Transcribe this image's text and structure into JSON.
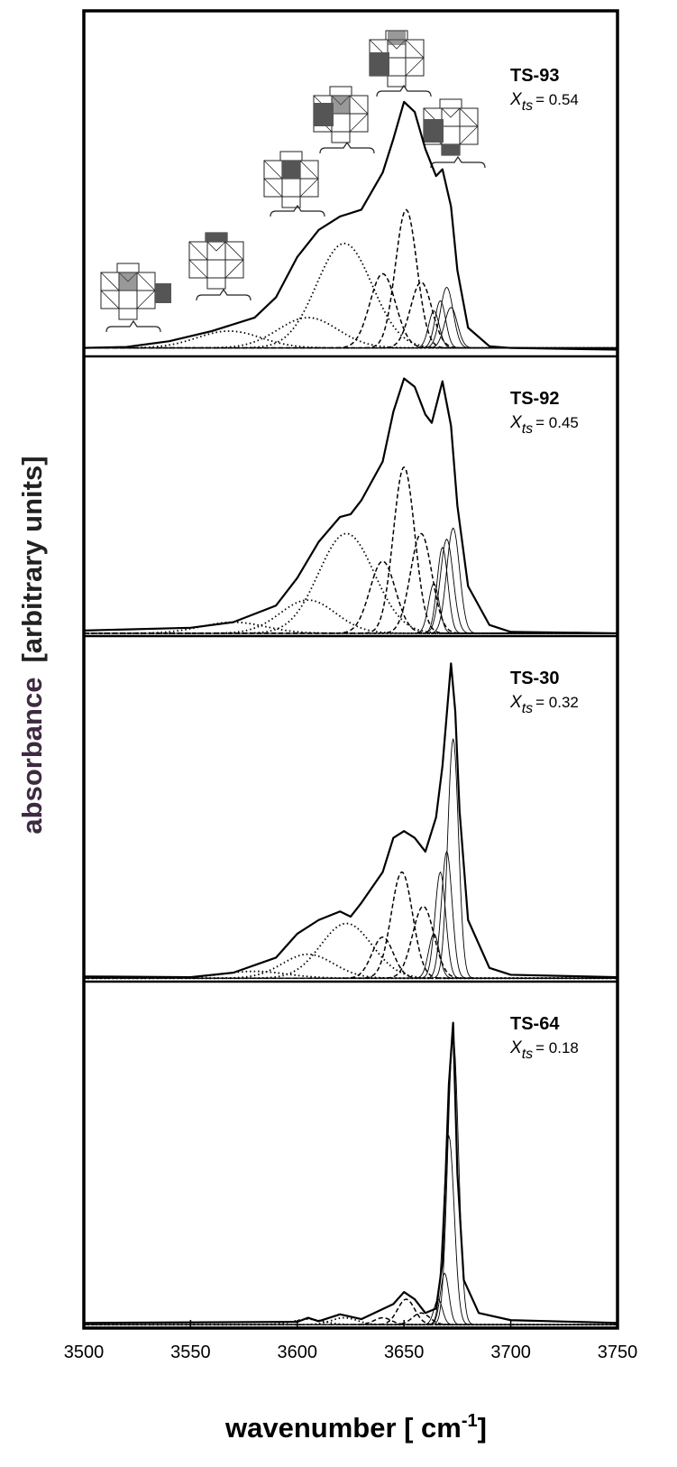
{
  "chart_data": [
    {
      "type": "line",
      "title": "TS-93",
      "annotation": {
        "symbol": "X",
        "subscript": "ts",
        "text": "= 0.54"
      },
      "xlim": [
        3500,
        3750
      ],
      "ylim": [
        -0.025,
        1
      ],
      "x": [
        3500,
        3520,
        3540,
        3560,
        3580,
        3590,
        3600,
        3610,
        3620,
        3630,
        3640,
        3645,
        3650,
        3655,
        3660,
        3665,
        3668,
        3672,
        3675,
        3680,
        3690,
        3700,
        3750
      ],
      "values": [
        0.0,
        0.003,
        0.02,
        0.05,
        0.09,
        0.15,
        0.27,
        0.35,
        0.39,
        0.41,
        0.52,
        0.62,
        0.73,
        0.7,
        0.59,
        0.51,
        0.53,
        0.42,
        0.23,
        0.06,
        0.005,
        0.0,
        -0.005
      ],
      "components": [
        {
          "line_style": "dotted",
          "peaks": [
            {
              "center": 3622,
              "height": 0.31,
              "width": 13
            },
            {
              "center": 3605,
              "height": 0.09,
              "width": 14
            },
            {
              "center": 3568,
              "height": 0.05,
              "width": 15
            }
          ]
        },
        {
          "line_style": "dashed",
          "peaks": [
            {
              "center": 3651,
              "height": 0.41,
              "width": 5
            },
            {
              "center": 3640,
              "height": 0.22,
              "width": 6
            },
            {
              "center": 3658,
              "height": 0.195,
              "width": 5
            }
          ]
        },
        {
          "line_style": "solid",
          "peaks": [
            {
              "center": 3664,
              "height": 0.11,
              "width": 2.5
            },
            {
              "center": 3667,
              "height": 0.14,
              "width": 2.5
            },
            {
              "center": 3670,
              "height": 0.18,
              "width": 3
            },
            {
              "center": 3672,
              "height": 0.12,
              "width": 3
            }
          ]
        }
      ]
    },
    {
      "type": "line",
      "title": "TS-92",
      "annotation": {
        "symbol": "X",
        "subscript": "ts",
        "text": "= 0.45"
      },
      "xlim": [
        3500,
        3750
      ],
      "ylim": [
        -0.01,
        1
      ],
      "x": [
        3500,
        3550,
        3570,
        3590,
        3600,
        3610,
        3620,
        3625,
        3630,
        3640,
        3645,
        3650,
        3655,
        3660,
        3663,
        3668,
        3672,
        3675,
        3680,
        3690,
        3700,
        3750
      ],
      "values": [
        0.01,
        0.02,
        0.04,
        0.1,
        0.2,
        0.33,
        0.42,
        0.43,
        0.48,
        0.62,
        0.8,
        0.92,
        0.89,
        0.79,
        0.76,
        0.91,
        0.75,
        0.46,
        0.17,
        0.03,
        0.005,
        0.0
      ],
      "components": [
        {
          "line_style": "dotted",
          "peaks": [
            {
              "center": 3623,
              "height": 0.36,
              "width": 13
            },
            {
              "center": 3605,
              "height": 0.12,
              "width": 13
            },
            {
              "center": 3570,
              "height": 0.04,
              "width": 15
            }
          ]
        },
        {
          "line_style": "dashed",
          "peaks": [
            {
              "center": 3650,
              "height": 0.6,
              "width": 5
            },
            {
              "center": 3640,
              "height": 0.26,
              "width": 6
            },
            {
              "center": 3658,
              "height": 0.36,
              "width": 5
            }
          ]
        },
        {
          "line_style": "solid",
          "peaks": [
            {
              "center": 3664,
              "height": 0.18,
              "width": 2.5
            },
            {
              "center": 3668,
              "height": 0.31,
              "width": 2.5
            },
            {
              "center": 3670,
              "height": 0.34,
              "width": 3
            },
            {
              "center": 3673,
              "height": 0.38,
              "width": 3
            }
          ]
        }
      ]
    },
    {
      "type": "line",
      "title": "TS-30",
      "annotation": {
        "symbol": "X",
        "subscript": "ts",
        "text": "= 0.32"
      },
      "xlim": [
        3500,
        3750
      ],
      "ylim": [
        -0.01,
        1
      ],
      "x": [
        3500,
        3550,
        3570,
        3590,
        3600,
        3610,
        3620,
        3625,
        3630,
        3640,
        3645,
        3650,
        3655,
        3660,
        3665,
        3668,
        3672,
        3674,
        3676,
        3680,
        3690,
        3700,
        3750
      ],
      "values": [
        0.005,
        0.003,
        0.016,
        0.06,
        0.13,
        0.17,
        0.195,
        0.18,
        0.22,
        0.31,
        0.41,
        0.43,
        0.41,
        0.37,
        0.47,
        0.62,
        0.92,
        0.78,
        0.49,
        0.17,
        0.03,
        0.01,
        0.003
      ],
      "components": [
        {
          "line_style": "dotted",
          "peaks": [
            {
              "center": 3623,
              "height": 0.16,
              "width": 12
            },
            {
              "center": 3605,
              "height": 0.07,
              "width": 12
            },
            {
              "center": 3580,
              "height": 0.02,
              "width": 15
            }
          ]
        },
        {
          "line_style": "dashed",
          "peaks": [
            {
              "center": 3649,
              "height": 0.31,
              "width": 5
            },
            {
              "center": 3640,
              "height": 0.12,
              "width": 5
            },
            {
              "center": 3659,
              "height": 0.21,
              "width": 5
            }
          ]
        },
        {
          "line_style": "solid",
          "peaks": [
            {
              "center": 3664,
              "height": 0.13,
              "width": 2.5
            },
            {
              "center": 3667,
              "height": 0.31,
              "width": 2.5
            },
            {
              "center": 3670,
              "height": 0.37,
              "width": 2.5
            },
            {
              "center": 3673,
              "height": 0.7,
              "width": 2.5
            }
          ]
        }
      ]
    },
    {
      "type": "line",
      "title": "TS-64",
      "annotation": {
        "symbol": "X",
        "subscript": "ts",
        "text": "= 0.18"
      },
      "xlim": [
        3500,
        3750
      ],
      "ylim": [
        -0.01,
        1
      ],
      "xticks": [
        3500,
        3550,
        3600,
        3650,
        3700,
        3750
      ],
      "xlabel": "wavenumber [ cm",
      "xlabel_sup": "-1",
      "xlabel_end": "]",
      "ylabel": "absorbance",
      "ylabel_end": "[arbitrary units]",
      "x": [
        3500,
        3600,
        3605,
        3610,
        3620,
        3630,
        3645,
        3650,
        3655,
        3660,
        3665,
        3668,
        3671,
        3673,
        3675,
        3678,
        3685,
        3700,
        3750
      ],
      "values": [
        0.005,
        0.008,
        0.02,
        0.01,
        0.03,
        0.016,
        0.06,
        0.095,
        0.074,
        0.034,
        0.047,
        0.18,
        0.7,
        0.88,
        0.44,
        0.13,
        0.034,
        0.013,
        0.005
      ],
      "components": [
        {
          "line_style": "dotted",
          "peaks": [
            {
              "center": 3622,
              "height": 0.02,
              "width": 6
            },
            {
              "center": 3605,
              "height": 0.016,
              "width": 7
            }
          ]
        },
        {
          "line_style": "dashed",
          "peaks": [
            {
              "center": 3651,
              "height": 0.074,
              "width": 4
            },
            {
              "center": 3640,
              "height": 0.02,
              "width": 4
            },
            {
              "center": 3658,
              "height": 0.034,
              "width": 4
            }
          ]
        },
        {
          "line_style": "solid",
          "peaks": [
            {
              "center": 3666,
              "height": 0.074,
              "width": 2
            },
            {
              "center": 3669,
              "height": 0.15,
              "width": 2
            },
            {
              "center": 3671,
              "height": 0.55,
              "width": 2.5
            },
            {
              "center": 3673,
              "height": 0.84,
              "width": 2.5
            }
          ]
        }
      ]
    }
  ]
}
